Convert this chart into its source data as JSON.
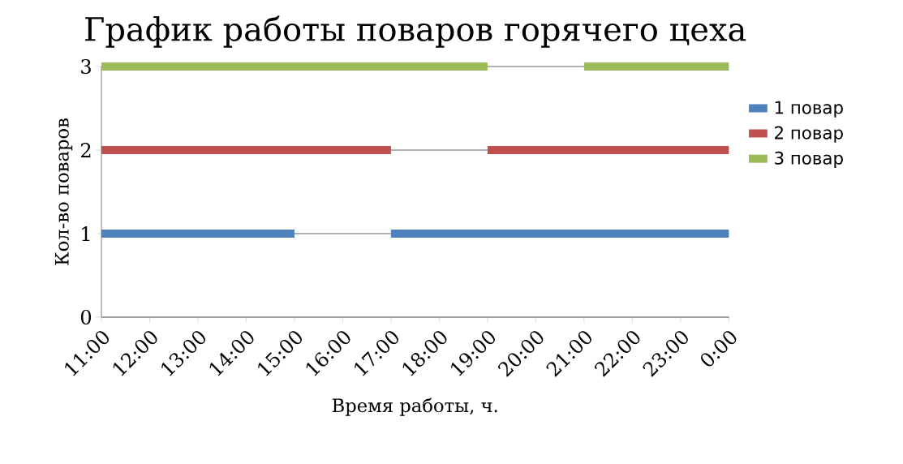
{
  "chart_data": {
    "type": "line",
    "title": "График работы поваров горячего цеха",
    "xlabel": "Время работы, ч.",
    "ylabel": "Кол-во поваров",
    "xlim": [
      11,
      24
    ],
    "xticks": [
      {
        "value": 11,
        "label": "11:00"
      },
      {
        "value": 12,
        "label": "12:00"
      },
      {
        "value": 13,
        "label": "13:00"
      },
      {
        "value": 14,
        "label": "14:00"
      },
      {
        "value": 15,
        "label": "15:00"
      },
      {
        "value": 16,
        "label": "16:00"
      },
      {
        "value": 17,
        "label": "17:00"
      },
      {
        "value": 18,
        "label": "18:00"
      },
      {
        "value": 19,
        "label": "19:00"
      },
      {
        "value": 20,
        "label": "20:00"
      },
      {
        "value": 21,
        "label": "21:00"
      },
      {
        "value": 22,
        "label": "22:00"
      },
      {
        "value": 23,
        "label": "23:00"
      },
      {
        "value": 24,
        "label": "0:00"
      }
    ],
    "ylim": [
      0,
      3
    ],
    "yticks": [
      0,
      1,
      2,
      3
    ],
    "grid": "y",
    "legend": "right",
    "series": [
      {
        "name": "1 повар",
        "color": "#4f81bd",
        "x": [
          11,
          15,
          16,
          17,
          24
        ],
        "values": [
          1,
          1,
          null,
          1,
          1
        ]
      },
      {
        "name": "2 повар",
        "color": "#c0504d",
        "x": [
          11,
          17,
          18,
          19,
          24
        ],
        "values": [
          2,
          2,
          null,
          2,
          2
        ]
      },
      {
        "name": "3 повар",
        "color": "#9bbb59",
        "x": [
          11,
          19,
          20,
          21,
          24
        ],
        "values": [
          3,
          3,
          null,
          3,
          3
        ]
      }
    ]
  }
}
